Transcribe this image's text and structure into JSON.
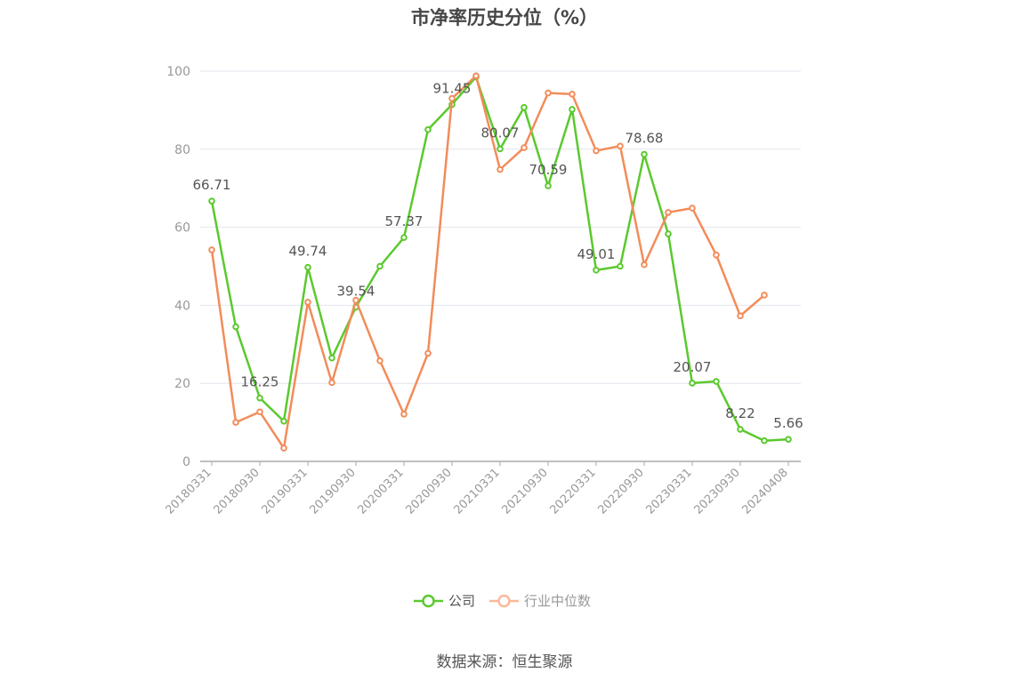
{
  "colors": {
    "company": "#5bc92e",
    "industry": "#f28c5a",
    "industry_legend": "#f9b99a",
    "grid": "#e3e6ee",
    "axis": "#aaaaaa"
  },
  "chart_data": {
    "type": "line",
    "title": "市净率历史分位（%）",
    "source": "数据来源：恒生聚源",
    "x": [
      "20180331",
      "20180630",
      "20180930",
      "20181231",
      "20190331",
      "20190630",
      "20190930",
      "20191231",
      "20200331",
      "20200630",
      "20200930",
      "20201231",
      "20210331",
      "20210630",
      "20210930",
      "20211231",
      "20220331",
      "20220630",
      "20220930",
      "20221231",
      "20230331",
      "20230630",
      "20230930",
      "20231231",
      "20240408"
    ],
    "x_tick_labels": [
      "20180331",
      "20180930",
      "20190331",
      "20190930",
      "20200331",
      "20200930",
      "20210331",
      "20210930",
      "20220331",
      "20220930",
      "20230331",
      "20230930",
      "20240408"
    ],
    "y_ticks": [
      "0",
      "20",
      "40",
      "60",
      "80",
      "100"
    ],
    "ylim": [
      0,
      100
    ],
    "grid": true,
    "legend_position": "bottom",
    "series": [
      {
        "name": "公司",
        "values": [
          66.71,
          34.5,
          16.25,
          10.3,
          49.74,
          26.5,
          39.54,
          50.0,
          57.37,
          85.0,
          91.45,
          98.5,
          80.07,
          90.7,
          70.59,
          90.2,
          49.01,
          50.0,
          78.68,
          58.3,
          20.07,
          20.5,
          8.22,
          5.3,
          5.66
        ]
      },
      {
        "name": "行业中位数",
        "values": [
          54.2,
          10.0,
          12.7,
          3.4,
          40.8,
          20.2,
          41.3,
          25.8,
          12.1,
          27.7,
          93.0,
          98.8,
          74.8,
          80.4,
          94.4,
          94.1,
          79.6,
          80.8,
          50.4,
          63.8,
          64.9,
          52.9,
          37.3,
          42.6,
          null
        ]
      }
    ],
    "data_labels": [
      {
        "index": 0,
        "text": "66.71"
      },
      {
        "index": 2,
        "text": "16.25"
      },
      {
        "index": 4,
        "text": "49.74"
      },
      {
        "index": 6,
        "text": "39.54"
      },
      {
        "index": 8,
        "text": "57.37"
      },
      {
        "index": 10,
        "text": "91.45"
      },
      {
        "index": 12,
        "text": "80.07"
      },
      {
        "index": 14,
        "text": "70.59"
      },
      {
        "index": 16,
        "text": "49.01"
      },
      {
        "index": 18,
        "text": "78.68"
      },
      {
        "index": 20,
        "text": "20.07"
      },
      {
        "index": 22,
        "text": "8.22"
      },
      {
        "index": 24,
        "text": "5.66"
      }
    ]
  }
}
